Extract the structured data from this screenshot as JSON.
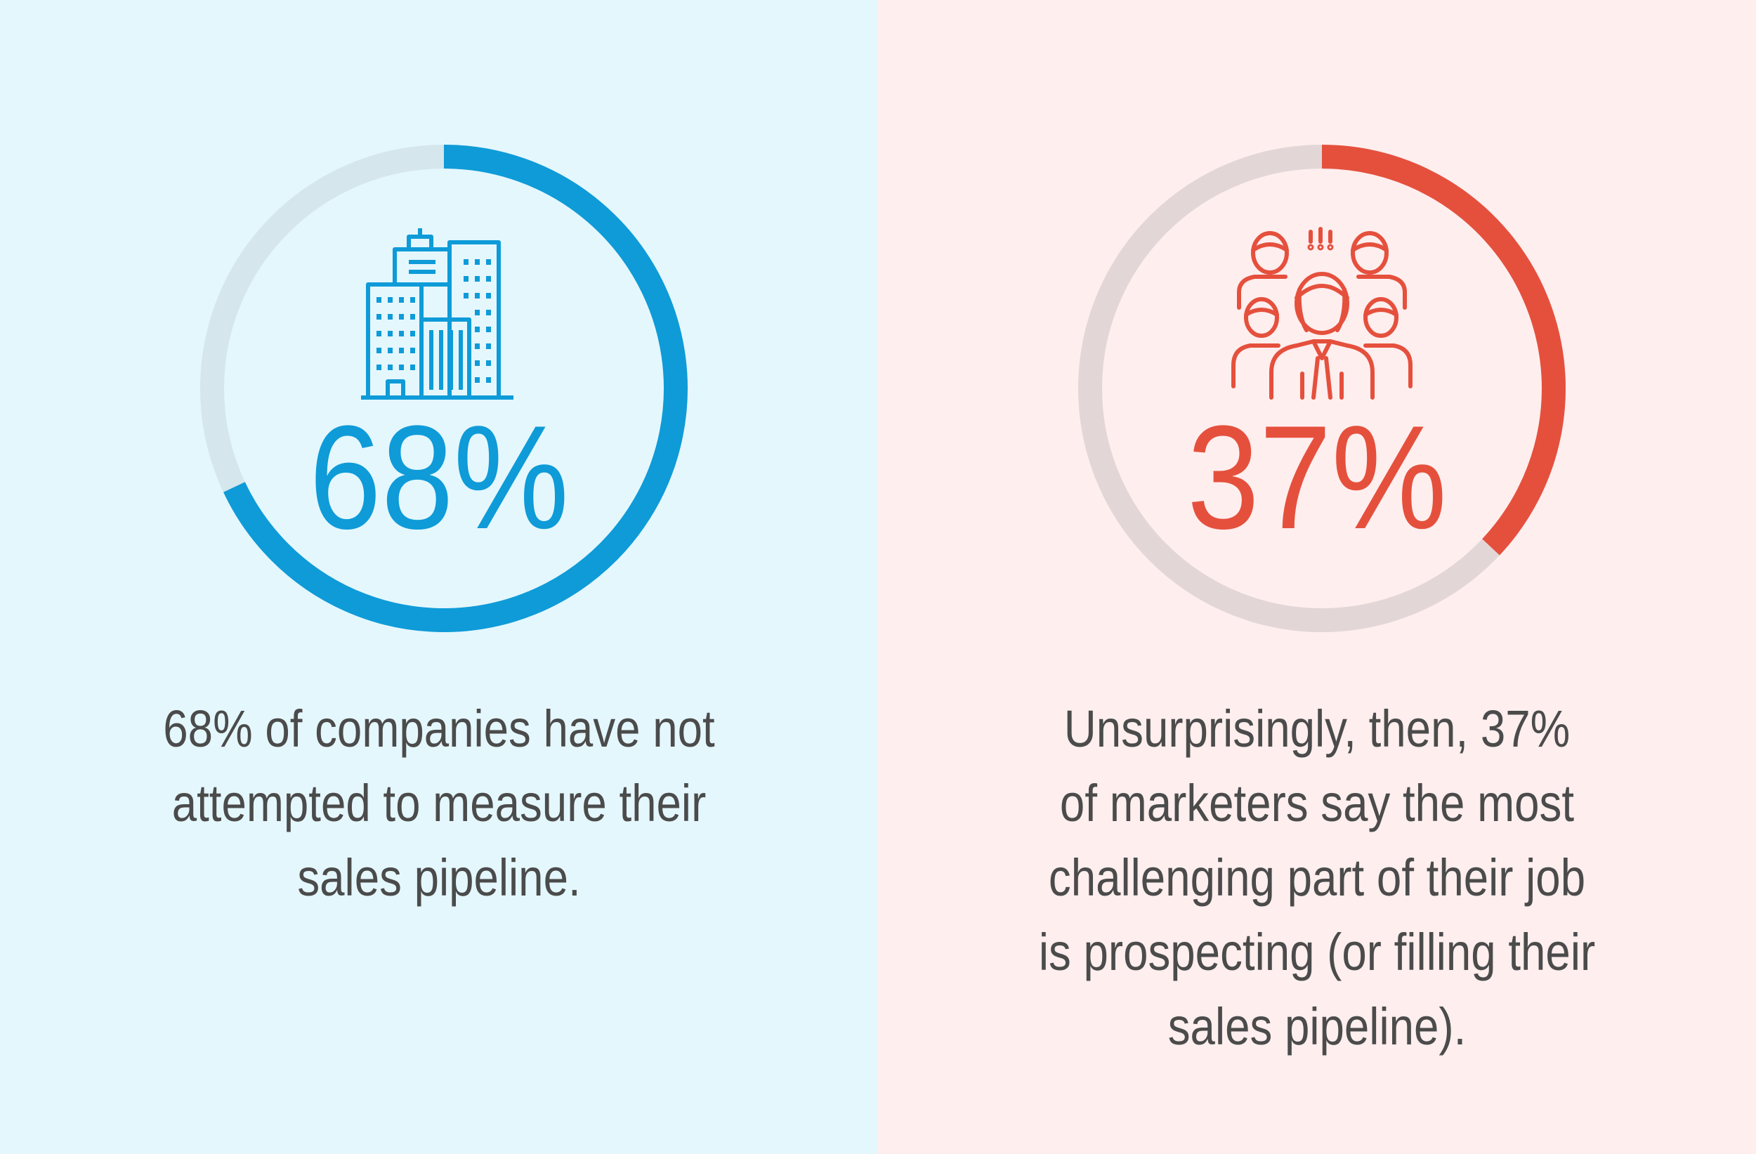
{
  "left": {
    "background": "#e4f7fd",
    "accent": "#0e9bd8",
    "track_color": "#d5e6ec",
    "percent_text": "68%",
    "percent_value": 68,
    "icon": "office-buildings-icon",
    "caption_lines": [
      "68% of companies have not",
      "attempted to measure their",
      "sales pipeline."
    ]
  },
  "right": {
    "background": "#feeeee",
    "accent": "#e5503d",
    "track_color": "#e3d6d7",
    "percent_text": "37%",
    "percent_value": 37,
    "icon": "team-group-icon",
    "caption_lines": [
      "Unsurprisingly, then, 37%",
      "of marketers say the most",
      "challenging part of their job",
      "is prospecting (or filling their",
      "sales pipeline)."
    ]
  },
  "text_color": "#4b4b4b"
}
